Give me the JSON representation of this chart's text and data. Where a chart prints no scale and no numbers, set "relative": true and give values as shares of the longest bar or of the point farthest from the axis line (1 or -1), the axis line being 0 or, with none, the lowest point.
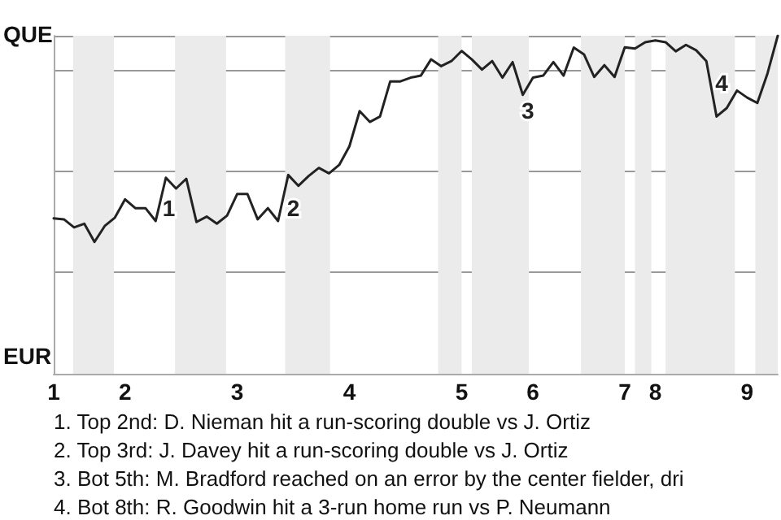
{
  "chart_data": {
    "type": "line",
    "relative": true,
    "categories": [
      "1",
      null,
      null,
      null,
      null,
      null,
      null,
      "2",
      null,
      null,
      null,
      null,
      null,
      null,
      null,
      null,
      null,
      null,
      "3",
      null,
      null,
      null,
      null,
      null,
      null,
      null,
      null,
      null,
      null,
      "4",
      null,
      null,
      null,
      null,
      null,
      null,
      null,
      null,
      null,
      null,
      "5",
      null,
      null,
      null,
      null,
      null,
      null,
      "6",
      null,
      null,
      null,
      null,
      null,
      null,
      null,
      null,
      "7",
      null,
      null,
      "8",
      null,
      null,
      null,
      null,
      null,
      null,
      null,
      null,
      "9",
      null,
      null,
      null
    ],
    "series": [
      {
        "color": "#222222",
        "values": [
          0.46,
          0.457,
          0.433,
          0.444,
          0.39,
          0.437,
          0.462,
          0.516,
          0.49,
          0.49,
          0.452,
          0.58,
          0.548,
          0.577,
          0.449,
          0.465,
          0.444,
          0.468,
          0.532,
          0.532,
          0.457,
          0.49,
          0.452,
          0.588,
          0.556,
          0.585,
          0.609,
          0.593,
          0.618,
          0.673,
          0.777,
          0.745,
          0.761,
          0.865,
          0.865,
          0.876,
          0.882,
          0.93,
          0.91,
          0.925,
          0.955,
          0.93,
          0.9,
          0.925,
          0.876,
          0.922,
          0.825,
          0.876,
          0.882,
          0.922,
          0.882,
          0.965,
          0.945,
          0.878,
          0.913,
          0.878,
          0.966,
          0.962,
          0.981,
          0.986,
          0.981,
          0.954,
          0.973,
          0.957,
          0.925,
          0.761,
          0.786,
          0.838,
          0.817,
          0.801,
          0.889,
          1
        ]
      }
    ],
    "annotations": [
      "QUE",
      "EUR",
      "1",
      "2",
      "3",
      "4",
      "1. Top 2nd: D. Nieman hit a run-scoring double vs J. Ortiz",
      "2. Top 3rd: J. Davey hit a run-scoring double vs J. Ortiz",
      "3. Bot 5th: M. Bradford reached on an error by the center fielder, dri",
      "4. Bot 8th: R. Goodwin hit a 3-run home run vs P. Neumann"
    ],
    "grid": true,
    "marker": "none",
    "line_style": "solid"
  }
}
